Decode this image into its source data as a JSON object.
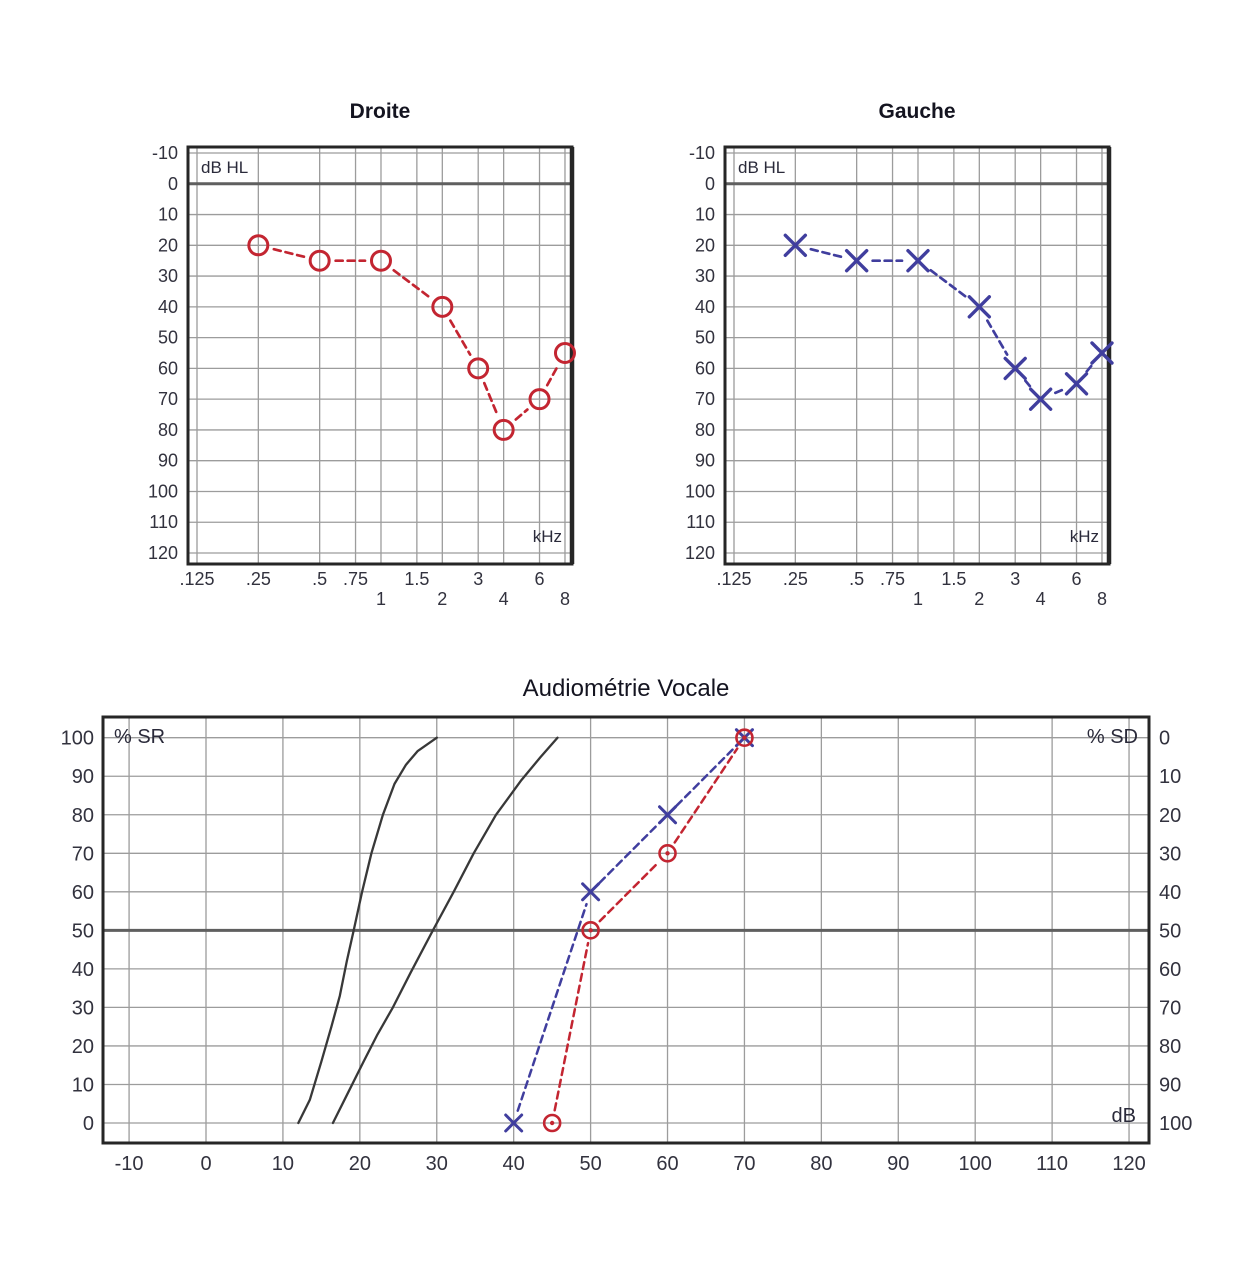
{
  "figure": {
    "titles": {
      "right_ear": "Droite",
      "left_ear": "Gauche",
      "speech": "Audiométrie Vocale"
    },
    "unit_labels": {
      "db_hl": "dB HL",
      "khz": "kHz",
      "percent_sr": "% SR",
      "percent_sd": "% SD",
      "db": "dB"
    }
  },
  "colors": {
    "red": "#c32531",
    "blue": "#403e9e",
    "reference_curve": "#383838",
    "grid": "#9c9c9c",
    "grid_major": "#5f5f5f",
    "border": "#262626",
    "label": "#32323e",
    "background": "#ffffff"
  },
  "chart_data": [
    {
      "type": "line",
      "id": "droite",
      "title": "Droite",
      "ear": "right",
      "marker": "circle",
      "color_key": "red",
      "x_axis": {
        "unit": "kHz",
        "scale": "log2-frequency",
        "ticks": [
          {
            "v": 0.125,
            "label": ".125",
            "row": 1
          },
          {
            "v": 0.25,
            "label": ".25",
            "row": 1
          },
          {
            "v": 0.5,
            "label": ".5",
            "row": 1
          },
          {
            "v": 0.75,
            "label": ".75",
            "row": 1
          },
          {
            "v": 1,
            "label": "1",
            "row": 2
          },
          {
            "v": 1.5,
            "label": "1.5",
            "row": 1
          },
          {
            "v": 2,
            "label": "2",
            "row": 2
          },
          {
            "v": 3,
            "label": "3",
            "row": 1
          },
          {
            "v": 4,
            "label": "4",
            "row": 2
          },
          {
            "v": 6,
            "label": "6",
            "row": 1
          },
          {
            "v": 8,
            "label": "8",
            "row": 2
          }
        ]
      },
      "y_axis": {
        "unit": "dB HL",
        "inverted": true,
        "major_tick": 0,
        "ticks": [
          -10,
          0,
          10,
          20,
          30,
          40,
          50,
          60,
          70,
          80,
          90,
          100,
          110,
          120
        ]
      },
      "points": [
        {
          "khz": 0.25,
          "db": 20
        },
        {
          "khz": 0.5,
          "db": 25
        },
        {
          "khz": 1,
          "db": 25
        },
        {
          "khz": 2,
          "db": 40
        },
        {
          "khz": 3,
          "db": 60
        },
        {
          "khz": 4,
          "db": 80
        },
        {
          "khz": 6,
          "db": 70
        },
        {
          "khz": 8,
          "db": 55
        }
      ]
    },
    {
      "type": "line",
      "id": "gauche",
      "title": "Gauche",
      "ear": "left",
      "marker": "x",
      "color_key": "blue",
      "x_axis": {
        "unit": "kHz",
        "scale": "log2-frequency",
        "ticks": [
          {
            "v": 0.125,
            "label": ".125",
            "row": 1
          },
          {
            "v": 0.25,
            "label": ".25",
            "row": 1
          },
          {
            "v": 0.5,
            "label": ".5",
            "row": 1
          },
          {
            "v": 0.75,
            "label": ".75",
            "row": 1
          },
          {
            "v": 1,
            "label": "1",
            "row": 2
          },
          {
            "v": 1.5,
            "label": "1.5",
            "row": 1
          },
          {
            "v": 2,
            "label": "2",
            "row": 2
          },
          {
            "v": 3,
            "label": "3",
            "row": 1
          },
          {
            "v": 4,
            "label": "4",
            "row": 2
          },
          {
            "v": 6,
            "label": "6",
            "row": 1
          },
          {
            "v": 8,
            "label": "8",
            "row": 2
          }
        ]
      },
      "y_axis": {
        "unit": "dB HL",
        "inverted": true,
        "major_tick": 0,
        "ticks": [
          -10,
          0,
          10,
          20,
          30,
          40,
          50,
          60,
          70,
          80,
          90,
          100,
          110,
          120
        ]
      },
      "points": [
        {
          "khz": 0.25,
          "db": 20
        },
        {
          "khz": 0.5,
          "db": 25
        },
        {
          "khz": 1,
          "db": 25
        },
        {
          "khz": 2,
          "db": 40
        },
        {
          "khz": 3,
          "db": 60
        },
        {
          "khz": 4,
          "db": 70
        },
        {
          "khz": 6,
          "db": 65
        },
        {
          "khz": 8,
          "db": 55
        }
      ]
    },
    {
      "type": "line",
      "id": "vocale",
      "title": "Audiométrie Vocale",
      "x_axis": {
        "unit": "dB",
        "ticks": [
          -10,
          0,
          10,
          20,
          30,
          40,
          50,
          60,
          70,
          80,
          90,
          100,
          110,
          120
        ]
      },
      "y_axis_left": {
        "label": "% SR",
        "ticks_top_to_bottom": [
          100,
          90,
          80,
          70,
          60,
          50,
          40,
          30,
          20,
          10,
          0
        ]
      },
      "y_axis_right": {
        "label": "% SD",
        "ticks_top_to_bottom": [
          0,
          10,
          20,
          30,
          40,
          50,
          60,
          70,
          80,
          90,
          100
        ]
      },
      "major_gridline_percent": 50,
      "reference_curves": [
        {
          "name": "normal-reference-curve-1",
          "points_db_pct": [
            [
              12,
              0
            ],
            [
              13.5,
              6
            ],
            [
              15,
              16
            ],
            [
              16.3,
              25
            ],
            [
              17.4,
              33
            ],
            [
              18.3,
              42
            ],
            [
              19.2,
              50
            ],
            [
              20.3,
              60
            ],
            [
              21.5,
              70
            ],
            [
              23,
              80
            ],
            [
              24.5,
              88
            ],
            [
              26,
              93
            ],
            [
              27.5,
              96.5
            ],
            [
              30,
              100
            ]
          ]
        },
        {
          "name": "normal-reference-curve-2",
          "points_db_pct": [
            [
              16.5,
              0
            ],
            [
              18.5,
              8
            ],
            [
              20.5,
              16
            ],
            [
              22.3,
              23
            ],
            [
              24.3,
              30
            ],
            [
              26.6,
              39
            ],
            [
              29.5,
              50
            ],
            [
              32.2,
              60
            ],
            [
              34.8,
              70
            ],
            [
              37.7,
              80
            ],
            [
              41,
              89
            ],
            [
              43.5,
              95
            ],
            [
              45.7,
              100
            ]
          ]
        }
      ],
      "series": [
        {
          "name": "Gauche",
          "marker": "x",
          "color_key": "blue",
          "points_db_pct": [
            [
              40,
              0
            ],
            [
              50,
              60
            ],
            [
              60,
              80
            ],
            [
              70,
              100
            ]
          ]
        },
        {
          "name": "Droite",
          "marker": "circle-dot",
          "color_key": "red",
          "points_db_pct": [
            [
              45,
              0
            ],
            [
              50,
              50
            ],
            [
              60,
              70
            ],
            [
              70,
              100
            ]
          ]
        }
      ]
    }
  ]
}
